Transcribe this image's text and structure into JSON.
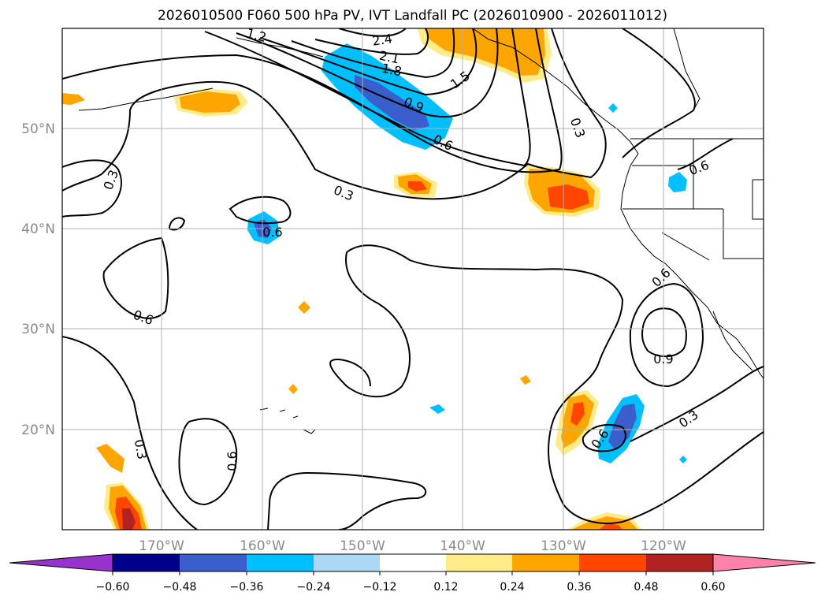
{
  "title": "2026010500 F060 500 hPa PV, IVT Landfall PC (2026010900 - 2026011012)",
  "longitude_labels": [
    "170°W",
    "160°W",
    "150°W",
    "140°W",
    "130°W",
    "120°W"
  ],
  "latitude_labels": [
    "50°N",
    "40°N",
    "30°N",
    "20°N"
  ],
  "colorbar": {
    "colors": [
      "#9932cc",
      "#00008b",
      "#3a5fcd",
      "#00bfff",
      "#add8f5",
      "#ffffff",
      "#ffeb8a",
      "#ffa500",
      "#ff4500",
      "#b22222",
      "#ff82ab"
    ],
    "tick_labels": [
      "−0.60",
      "−0.48",
      "−0.36",
      "−0.24",
      "−0.12",
      "0.12",
      "0.24",
      "0.36",
      "0.48",
      "0.60"
    ]
  },
  "contour_labels": [
    {
      "text": "2.4",
      "name": "contour-label-2-4"
    },
    {
      "text": "2.1",
      "name": "contour-label-2-1"
    },
    {
      "text": "1.8",
      "name": "contour-label-1-8"
    },
    {
      "text": "1.5",
      "name": "contour-label-1-5"
    },
    {
      "text": "1.2",
      "name": "contour-label-1-2"
    },
    {
      "text": "0.9",
      "name": "contour-label-0-9-north"
    },
    {
      "text": "0.6",
      "name": "contour-label-0-6-north"
    },
    {
      "text": "0.3",
      "name": "contour-label-0-3-coast"
    },
    {
      "text": "0.6",
      "name": "contour-label-0-6-idaho"
    },
    {
      "text": "0.3",
      "name": "contour-label-0-3-west"
    },
    {
      "text": "0.3",
      "name": "contour-label-0-3-central"
    },
    {
      "text": "0.6",
      "name": "contour-label-0-6-blob"
    },
    {
      "text": "0.6",
      "name": "contour-label-0-6-southwest"
    },
    {
      "text": "0.6",
      "name": "contour-label-0-6-baja"
    },
    {
      "text": "0.9",
      "name": "contour-label-0-9-south"
    },
    {
      "text": "0.6",
      "name": "contour-label-0-6-hawaii-south"
    },
    {
      "text": "0.3",
      "name": "contour-label-0-3-southwest"
    },
    {
      "text": "0.6",
      "name": "contour-label-0-6-southeast"
    },
    {
      "text": "0.3",
      "name": "contour-label-0-3-southeast"
    }
  ]
}
